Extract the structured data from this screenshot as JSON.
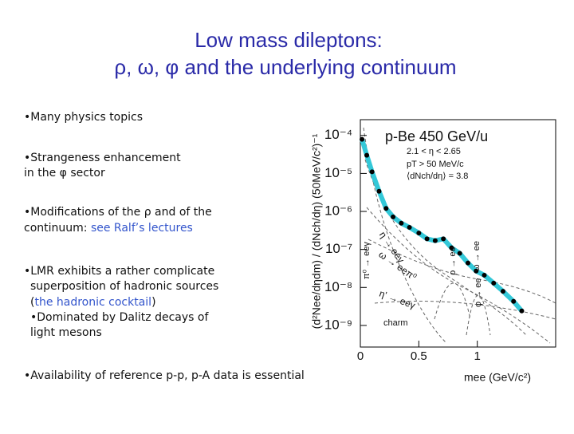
{
  "title": [
    "Low mass dileptons:",
    "ρ, ω, φ and the underlying continuum"
  ],
  "lines": [
    {
      "segments": [
        {
          "text": "•Many physics topics"
        }
      ]
    },
    {
      "segments": [
        {
          "text": "•Strangeness enhancement"
        }
      ]
    },
    {
      "segments": [
        {
          "text": "  in the φ sector"
        }
      ]
    },
    {
      "segments": [
        {
          "text": "•Modifications of the ρ and of the"
        }
      ]
    },
    {
      "segments": [
        {
          "text": " continuum: "
        },
        {
          "text": "see Ralf’s lectures",
          "link": true
        }
      ]
    },
    {
      "segments": [
        {
          "text": "•LMR exhibits a rather complicate"
        }
      ]
    },
    {
      "segments": [
        {
          "text": "superposition of hadronic sources"
        }
      ]
    },
    {
      "segments": [
        {
          "text": "("
        },
        {
          "text": "the hadronic cocktail",
          "link": true
        },
        {
          "text": ")"
        }
      ]
    },
    {
      "segments": [
        {
          "text": "•Dominated by Dalitz decays of"
        }
      ]
    },
    {
      "segments": [
        {
          "text": "  light mesons"
        }
      ]
    },
    {
      "segments": [
        {
          "text": "•Availability of  reference p-p, p-A data is essential"
        }
      ]
    }
  ],
  "chart_data": {
    "type": "scatter",
    "x_label": "mee (GeV/c²)",
    "y_label": "(d²Nee/dηdm) / (dNch/dη) (50MeV/c²)⁻¹",
    "annotations": [
      "p-Be 450 GeV/u",
      "2.1 < η < 2.65",
      "pT > 50 MeV/c",
      "⟨dNch/dη⟩ = 3.8",
      "η → eeγ",
      "ω → eeπ⁰",
      "η' → eeγ",
      "π⁰ → eeγ",
      "ρ → ee",
      "ω → ee",
      "φ → ee",
      "charm"
    ],
    "log_y": true,
    "xlim": [
      0,
      1.67
    ],
    "ylim": [
      2.7e-10,
      0.00026
    ],
    "xticks": [
      0,
      0.5,
      1
    ],
    "yticks": [
      {
        "value": 0.0001,
        "label": "10⁻⁴"
      },
      {
        "value": 1e-05,
        "label": "10⁻⁵"
      },
      {
        "value": 1e-06,
        "label": "10⁻⁶"
      },
      {
        "value": 1e-07,
        "label": "10⁻⁷"
      },
      {
        "value": 1e-08,
        "label": "10⁻⁸"
      },
      {
        "value": 1e-09,
        "label": "10⁻⁹"
      }
    ],
    "x": [
      0.014,
      0.055,
      0.1,
      0.16,
      0.22,
      0.28,
      0.35,
      0.42,
      0.5,
      0.57,
      0.64,
      0.71,
      0.78,
      0.85,
      0.92,
      0.99,
      1.06,
      1.14,
      1.22,
      1.31,
      1.38
    ],
    "series": [
      {
        "color": "#33c8d8",
        "line": true,
        "values": [
          7.9e-05,
          3e-05,
          1.1e-05,
          3.4e-06,
          1.2e-06,
          7.2e-07,
          4.9e-07,
          3.8e-07,
          2.7e-07,
          1.9e-07,
          1.7e-07,
          1.9e-07,
          1.1e-07,
          7.9e-08,
          4.4e-08,
          2.7e-08,
          2.1e-08,
          1.3e-08,
          7.9e-09,
          4.3e-09,
          2.4e-09
        ]
      },
      {
        "color": "#000000",
        "values": [
          7.9e-05,
          3e-05,
          1.1e-05,
          3.4e-06,
          1.2e-06,
          7.2e-07,
          4.9e-07,
          3.8e-07,
          2.7e-07,
          1.9e-07,
          1.7e-07,
          1.9e-07,
          1.1e-07,
          7.9e-08,
          4.4e-08,
          2.7e-08,
          2.1e-08,
          1.3e-08,
          7.9e-09,
          4.3e-09,
          2.4e-09
        ]
      }
    ]
  }
}
